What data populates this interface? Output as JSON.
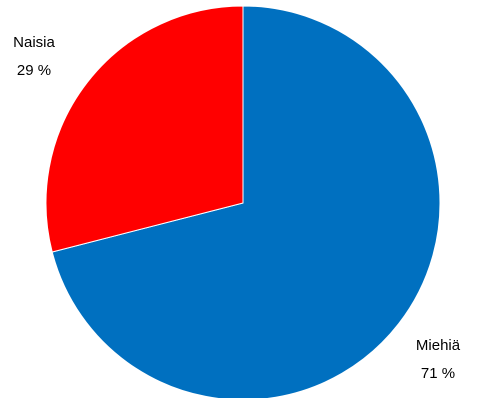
{
  "chart_data": {
    "type": "pie",
    "start_angle_deg": 0,
    "direction": "clockwise",
    "slices": [
      {
        "label": "Miehiä",
        "percent_label": "71 %",
        "value": 71,
        "color": "#0070c0"
      },
      {
        "label": "Naisia",
        "percent_label": "29 %",
        "value": 29,
        "color": "#ff0000"
      }
    ]
  }
}
